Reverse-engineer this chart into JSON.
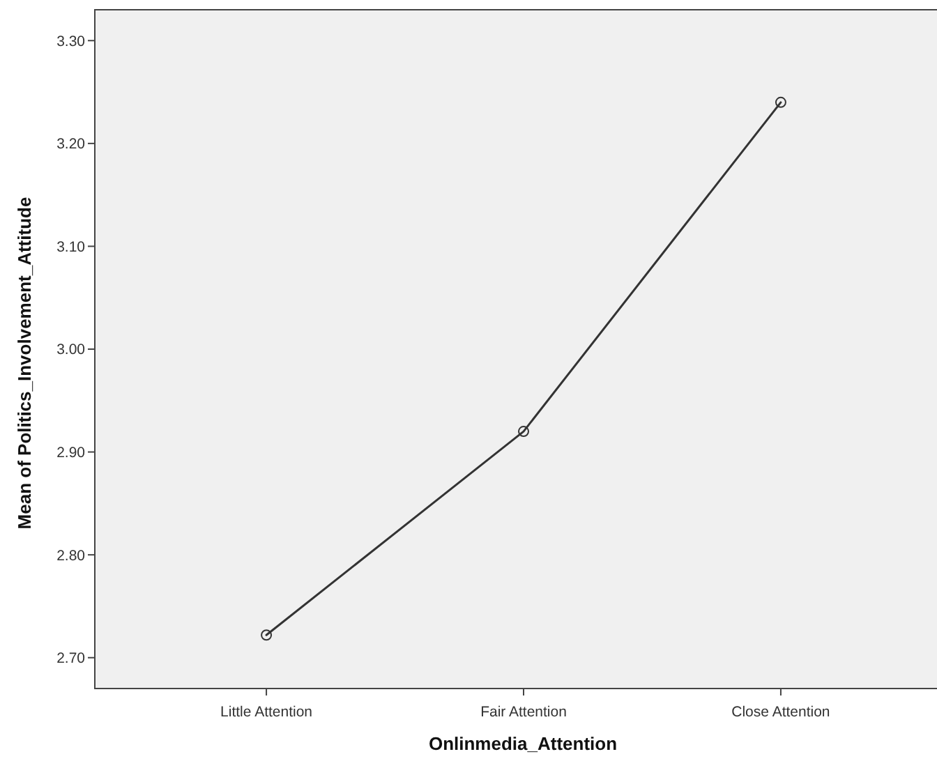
{
  "chart_data": {
    "type": "line",
    "xlabel": "Onlinmedia_Attention",
    "ylabel": "Mean of Politics_Involvement_Attitude",
    "categories": [
      "Little Attention",
      "Fair Attention",
      "Close Attention"
    ],
    "series": [
      {
        "color": "#333333",
        "values": [
          2.722,
          2.92,
          3.24
        ]
      }
    ],
    "ylim": [
      2.67,
      3.33
    ],
    "yticks": [
      {
        "value": 2.7,
        "label": "2.70"
      },
      {
        "value": 2.8,
        "label": "2.80"
      },
      {
        "value": 2.9,
        "label": "2.90"
      },
      {
        "value": 3.0,
        "label": "3.00"
      },
      {
        "value": 3.1,
        "label": "3.10"
      },
      {
        "value": 3.2,
        "label": "3.20"
      },
      {
        "value": 3.3,
        "label": "3.30"
      }
    ],
    "marker": "circle",
    "line_style": "solid"
  }
}
